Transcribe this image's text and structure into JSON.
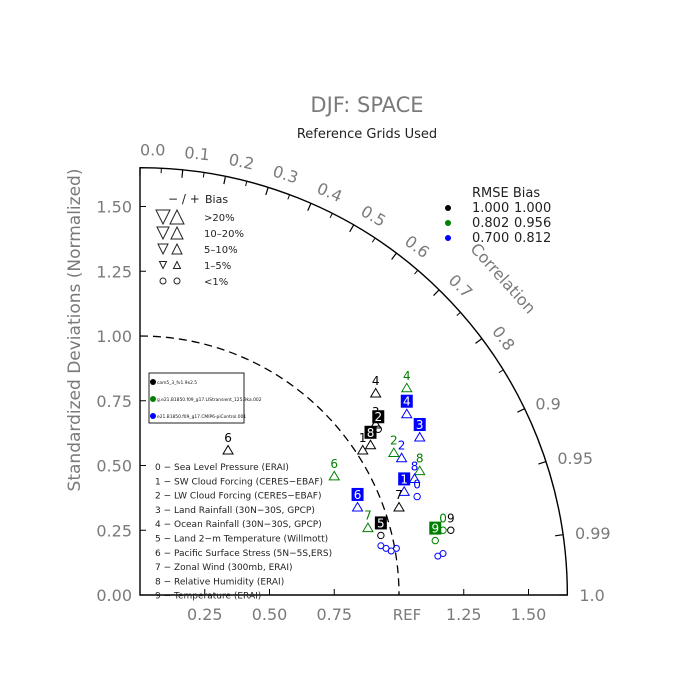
{
  "chart_data": {
    "type": "scatter",
    "title": "DJF: SPACE",
    "subtitle": "Reference Grids Used",
    "ylabel": "Standardized Deviations (Normalized)",
    "correlation_label": "Correlation",
    "ref_label": "REF",
    "ylim": [
      0,
      1.65
    ],
    "xlim": [
      0,
      1.65
    ],
    "x_ticks": [
      "0.25",
      "0.50",
      "0.75",
      "1.25",
      "1.50"
    ],
    "y_ticks": [
      "0.00",
      "0.25",
      "0.50",
      "0.75",
      "1.00",
      "1.25",
      "1.50"
    ],
    "corr_ticks": [
      "0.0",
      "0.1",
      "0.2",
      "0.3",
      "0.4",
      "0.5",
      "0.6",
      "0.7",
      "0.8",
      "0.9",
      "0.95",
      "0.99",
      "1.0"
    ],
    "bias_legend": {
      "header_signs": "− / +",
      "header_label": "Bias",
      "rows": [
        ">20%",
        "10–20%",
        "5–10%",
        "1–5%",
        "<1%"
      ]
    },
    "rmse_legend": {
      "header": "RMSE  Bias",
      "rows": [
        {
          "color": "#000000",
          "rmse": "1.000",
          "bias": "1.000"
        },
        {
          "color": "#008000",
          "rmse": "0.802",
          "bias": "0.956"
        },
        {
          "color": "#0000ff",
          "rmse": "0.700",
          "bias": "0.812"
        }
      ]
    },
    "cases": [
      {
        "label": "cam5_3_fv1.9x2.5",
        "color": "#000000"
      },
      {
        "label": "g.e21.B1850.f09_g17.LIStransient_125.9ka.002",
        "color": "#008000"
      },
      {
        "label": "e21.B1850.f09_g17.CMIP6-piControl.001",
        "color": "#0000ff"
      }
    ],
    "variables": [
      "0 − Sea Level Pressure (ERAI)",
      "1 − SW Cloud Forcing (CERES−EBAF)",
      "2 − LW Cloud Forcing (CERES−EBAF)",
      "3 − Land Rainfall (30N−30S, GPCP)",
      "4 − Ocean Rainfall (30N−30S, GPCP)",
      "5 − Land 2−m Temperature (Willmott)",
      "6 − Pacific Surface Stress (5N−5S,ERS)",
      "7 − Zonal Wind (300mb, ERAI)",
      "8 − Relative Humidity (ERAI)",
      "9 − Temperature (ERAI)"
    ],
    "points": [
      {
        "label": "4",
        "color": "black",
        "x": 0.91,
        "y": 0.78,
        "marker": "tri_up",
        "boxed": false
      },
      {
        "label": "4",
        "color": "green",
        "x": 1.03,
        "y": 0.8,
        "marker": "tri_up",
        "boxed": false
      },
      {
        "label": "4",
        "color": "blue",
        "x": 1.03,
        "y": 0.7,
        "marker": "tri_up",
        "boxed": true
      },
      {
        "label": "3",
        "color": "black",
        "x": 0.91,
        "y": 0.66,
        "marker": "tri_up",
        "boxed": false
      },
      {
        "label": "2",
        "color": "black",
        "x": 0.92,
        "y": 0.64,
        "marker": "circle",
        "boxed": true
      },
      {
        "label": "3",
        "color": "blue",
        "x": 1.08,
        "y": 0.61,
        "marker": "tri_up",
        "boxed": true
      },
      {
        "label": "1",
        "color": "black",
        "x": 0.86,
        "y": 0.56,
        "marker": "tri_up",
        "boxed": false
      },
      {
        "label": "8",
        "color": "black",
        "x": 0.89,
        "y": 0.58,
        "marker": "tri_up",
        "boxed": true
      },
      {
        "label": "2",
        "color": "green",
        "x": 0.98,
        "y": 0.55,
        "marker": "tri_up",
        "boxed": false
      },
      {
        "label": "2",
        "color": "blue",
        "x": 1.01,
        "y": 0.53,
        "marker": "tri_up",
        "boxed": false
      },
      {
        "label": "8",
        "color": "green",
        "x": 1.08,
        "y": 0.48,
        "marker": "tri_up",
        "boxed": false
      },
      {
        "label": "8",
        "color": "blue",
        "x": 1.06,
        "y": 0.45,
        "marker": "tri_up",
        "boxed": false
      },
      {
        "label": "6",
        "color": "black",
        "x": 0.34,
        "y": 0.56,
        "marker": "tri_up",
        "boxed": false
      },
      {
        "label": "6",
        "color": "green",
        "x": 0.75,
        "y": 0.46,
        "marker": "tri_up",
        "boxed": false
      },
      {
        "label": "6",
        "color": "blue",
        "x": 0.84,
        "y": 0.34,
        "marker": "tri_up",
        "boxed": true
      },
      {
        "label": "1",
        "color": "blue",
        "x": 1.02,
        "y": 0.4,
        "marker": "tri_up",
        "boxed": true
      },
      {
        "label": "0",
        "color": "blue",
        "x": 1.07,
        "y": 0.38,
        "marker": "circle",
        "boxed": false
      },
      {
        "label": "7",
        "color": "black",
        "x": 1.0,
        "y": 0.34,
        "marker": "tri_up",
        "boxed": false
      },
      {
        "label": "7",
        "color": "green",
        "x": 0.88,
        "y": 0.26,
        "marker": "tri_up",
        "boxed": false
      },
      {
        "label": "5",
        "color": "black",
        "x": 0.93,
        "y": 0.23,
        "marker": "circle",
        "boxed": true
      },
      {
        "label": "0",
        "color": "green",
        "x": 1.17,
        "y": 0.25,
        "marker": "circle",
        "boxed": false
      },
      {
        "label": "9",
        "color": "black",
        "x": 1.2,
        "y": 0.25,
        "marker": "circle",
        "boxed": false
      },
      {
        "label": "9",
        "color": "green",
        "x": 1.14,
        "y": 0.21,
        "marker": "circle",
        "boxed": true
      }
    ]
  }
}
